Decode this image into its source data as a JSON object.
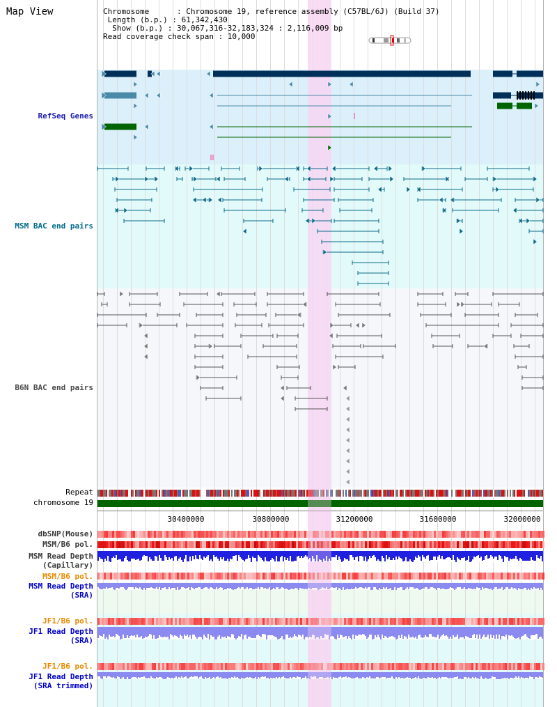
{
  "header": {
    "title": "Map View",
    "lines": [
      "Chromosome      : Chromosome 19, reference assembly (C57BL/6J) (Build 37)",
      " Length (b.p.) : 61,342,430",
      "  Show (b.p.) : 30,067,316-32,183,324 : 2,116,009 bp",
      "Read coverage check span : 10,000"
    ]
  },
  "tracks": {
    "refseq": "RefSeq Genes",
    "msm_bac": "MSM BAC end pairs",
    "b6n_bac": "B6N BAC end pairs",
    "repeat": "Repeat",
    "chromosome": "chromosome 19",
    "dbsnp": "dbSNP(Mouse)",
    "msm_pol1": "MSM/B6 pol.",
    "msm_depth_cap": [
      "MSM Read Depth",
      "(Capillary)"
    ],
    "msm_pol2": "MSM/B6 pol.",
    "msm_depth_sra": [
      "MSM Read Depth",
      "(SRA)"
    ],
    "jf1_pol1": "JF1/B6 pol.",
    "jf1_depth_sra": [
      "JF1 Read Depth",
      "(SRA)"
    ],
    "jf1_pol2": "JF1/B6 pol.",
    "jf1_depth_trim": [
      "JF1 Read Depth",
      "(SRA trimmed)"
    ]
  },
  "axis": {
    "ticks": [
      "30400000",
      "30800000",
      "31200000",
      "31600000",
      "32000000"
    ]
  },
  "colors": {
    "refseq_bg": "#dbf0fa",
    "msm_bg": "#e3fafa",
    "b6n_bg": "#f5f7fb",
    "highlight": "#f6d6f2",
    "msm_label": "#006a8a",
    "b6n_label": "#4a4a4a",
    "ref_label": "#1a1ab0",
    "pol_label": "#e88a00",
    "depth_label": "#0000c8",
    "gene_dark": "#00305a",
    "gene_mid": "#4a8aa8",
    "gene_green": "#006400",
    "msm_line": "#0a6a88",
    "b6n_line": "#555555",
    "chr_green": "#006400",
    "depth_blue": "#2020e0",
    "depth_lightblue": "#8a8af0",
    "pol_red": "#e83030"
  }
}
